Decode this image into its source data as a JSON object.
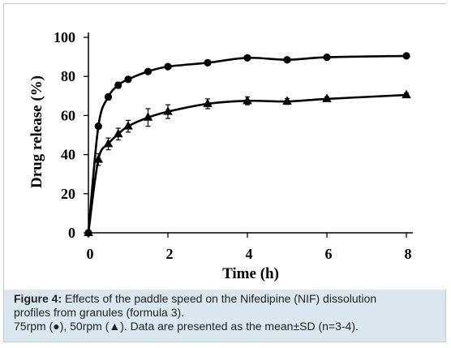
{
  "chart_data": {
    "type": "line",
    "xlabel": "Time (h)",
    "ylabel": "Drug release (%)",
    "xlim": [
      0,
      8
    ],
    "ylim": [
      0,
      100
    ],
    "x_ticks": [
      "0",
      "2",
      "4",
      "6",
      "8"
    ],
    "y_ticks": [
      "0",
      "20",
      "40",
      "60",
      "80",
      "100"
    ],
    "grid": false,
    "legend": "none",
    "series": [
      {
        "marker": "circle",
        "x": [
          0,
          0.25,
          0.5,
          0.75,
          1,
          1.5,
          2,
          3,
          4,
          5,
          6,
          8
        ],
        "values": [
          0,
          54.5,
          69.5,
          75.5,
          78.5,
          82.5,
          85,
          87,
          89.5,
          88.5,
          89.8,
          90.5
        ],
        "errors": [
          0,
          1,
          1.5,
          1.5,
          1,
          1,
          1,
          1,
          1,
          1,
          1,
          1
        ]
      },
      {
        "marker": "triangle",
        "x": [
          0,
          0.25,
          0.5,
          0.75,
          1,
          1.5,
          2,
          3,
          4,
          5,
          6,
          8
        ],
        "values": [
          0,
          37.5,
          45.5,
          50.5,
          54.5,
          59,
          62,
          66,
          67.5,
          67.2,
          68.5,
          70.5
        ],
        "errors": [
          0,
          3,
          3,
          3,
          3,
          4.5,
          3.5,
          2.5,
          2,
          1.5,
          1,
          1
        ]
      }
    ],
    "colors": {
      "line": "#000000"
    }
  },
  "caption": {
    "label": "Figure 4:",
    "text1": "Effects of the paddle speed on the Nifedipine (NIF) dissolution",
    "text2": "profiles from granules (formula 3).",
    "text3": "75rpm (●), 50rpm (▲). Data are presented as the mean±SD (n=3-4)."
  },
  "colors": {
    "panel_bg": "#dbe7ee",
    "plot_bg": "#ffffff"
  }
}
